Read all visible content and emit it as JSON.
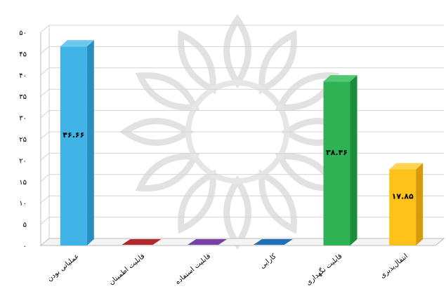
{
  "chart_data": {
    "type": "bar",
    "categories": [
      "عملیاتی بودن",
      "قابلیت اطمینان",
      "قابلیت استفاده",
      "کارایی",
      "قابلیت نگهداری",
      "انتقال‌پذیری"
    ],
    "values": [
      46.66,
      0,
      0,
      0,
      38.46,
      17.85
    ],
    "value_labels": [
      "۴۶.۶۶",
      "",
      "",
      "",
      "۳۸.۴۶",
      "۱۷.۸۵"
    ],
    "colors": [
      "#3fb3e6",
      "#b3262a",
      "#7a3ea8",
      "#1f6fb8",
      "#2db354",
      "#ffc21a"
    ],
    "side_colors": [
      "#2a8fbf",
      "#7d1518",
      "#542478",
      "#124c85",
      "#1d8a3c",
      "#d69a0c"
    ],
    "top_colors": [
      "#6cc8ee",
      "#cf4245",
      "#9a5cc6",
      "#3d8ad1",
      "#53c874",
      "#ffd453"
    ],
    "yticks": [
      "۰",
      "۵",
      "۱۰",
      "۱۵",
      "۲۰",
      "۲۵",
      "۳۰",
      "۳۵",
      "۴۰",
      "۴۵",
      "۵۰"
    ],
    "ylim": [
      0,
      50
    ],
    "grid": true,
    "legend": "none",
    "title": "",
    "xlabel": "",
    "ylabel": ""
  }
}
